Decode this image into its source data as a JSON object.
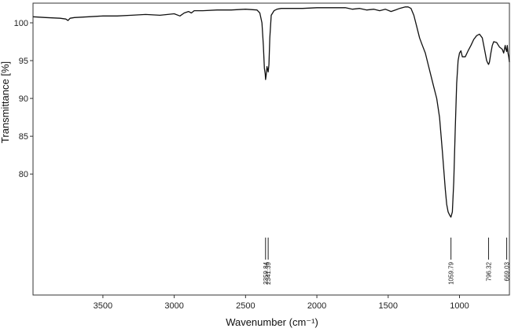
{
  "chart_data": {
    "type": "line",
    "title": "",
    "xlabel": "Wavenumber (cm⁻¹)",
    "ylabel": "Transmittance [%]",
    "x_reversed": true,
    "xlim": [
      3990,
      650
    ],
    "ylim": [
      64,
      102.6
    ],
    "x_ticks": [
      3500,
      3000,
      2500,
      2000,
      1500,
      1000
    ],
    "y_ticks": [
      80,
      85,
      90,
      95,
      100
    ],
    "grid": false,
    "series": [
      {
        "x": [
          3990,
          3900,
          3800,
          3760,
          3745,
          3730,
          3700,
          3600,
          3500,
          3400,
          3300,
          3200,
          3100,
          3000,
          2960,
          2930,
          2900,
          2880,
          2860,
          2800,
          2700,
          2600,
          2500,
          2420,
          2400,
          2385,
          2375,
          2368,
          2362,
          2359.84,
          2356,
          2350,
          2345,
          2341.39,
          2336,
          2330,
          2320,
          2300,
          2280,
          2250,
          2200,
          2100,
          2000,
          1900,
          1800,
          1750,
          1700,
          1650,
          1600,
          1560,
          1520,
          1480,
          1450,
          1420,
          1400,
          1380,
          1360,
          1340,
          1320,
          1300,
          1280,
          1260,
          1240,
          1220,
          1200,
          1180,
          1160,
          1140,
          1120,
          1100,
          1090,
          1080,
          1070,
          1059.79,
          1050,
          1040,
          1030,
          1020,
          1010,
          1000,
          990,
          980,
          960,
          940,
          920,
          900,
          880,
          860,
          840,
          820,
          810,
          800,
          796.32,
          790,
          780,
          770,
          760,
          740,
          720,
          700,
          690,
          680,
          675,
          669.03,
          665,
          660,
          655,
          650
        ],
        "y": [
          100.8,
          100.7,
          100.6,
          100.5,
          100.3,
          100.6,
          100.7,
          100.8,
          100.9,
          100.9,
          101.0,
          101.1,
          101.0,
          101.2,
          100.9,
          101.3,
          101.5,
          101.3,
          101.6,
          101.6,
          101.7,
          101.7,
          101.8,
          101.7,
          101.3,
          100.0,
          97.0,
          94.0,
          93.2,
          92.5,
          93.0,
          94.2,
          93.8,
          93.5,
          94.5,
          98.0,
          101.0,
          101.6,
          101.8,
          101.9,
          101.9,
          101.9,
          102.0,
          102.0,
          102.0,
          101.8,
          101.9,
          101.7,
          101.8,
          101.6,
          101.8,
          101.5,
          101.7,
          101.9,
          102.0,
          102.1,
          102.1,
          101.9,
          101.0,
          99.5,
          98.0,
          97.0,
          96.0,
          94.5,
          93.0,
          91.5,
          90.0,
          87.5,
          83.0,
          78.0,
          76.0,
          75.0,
          74.6,
          74.3,
          75.0,
          79.0,
          86.0,
          92.0,
          95.0,
          96.0,
          96.3,
          95.5,
          95.5,
          96.3,
          97.0,
          97.8,
          98.3,
          98.5,
          98.0,
          96.0,
          95.0,
          94.6,
          94.5,
          94.8,
          96.0,
          97.0,
          97.5,
          97.4,
          96.8,
          96.5,
          96.0,
          97.0,
          96.5,
          96.2,
          97.0,
          96.0,
          95.5,
          94.8
        ]
      }
    ],
    "peaks": [
      {
        "x": 2359.84,
        "label": "2359.84"
      },
      {
        "x": 2341.39,
        "label": "2341.39"
      },
      {
        "x": 1059.79,
        "label": "1059.79"
      },
      {
        "x": 796.32,
        "label": "796.32"
      },
      {
        "x": 669.03,
        "label": "669.03"
      }
    ]
  }
}
